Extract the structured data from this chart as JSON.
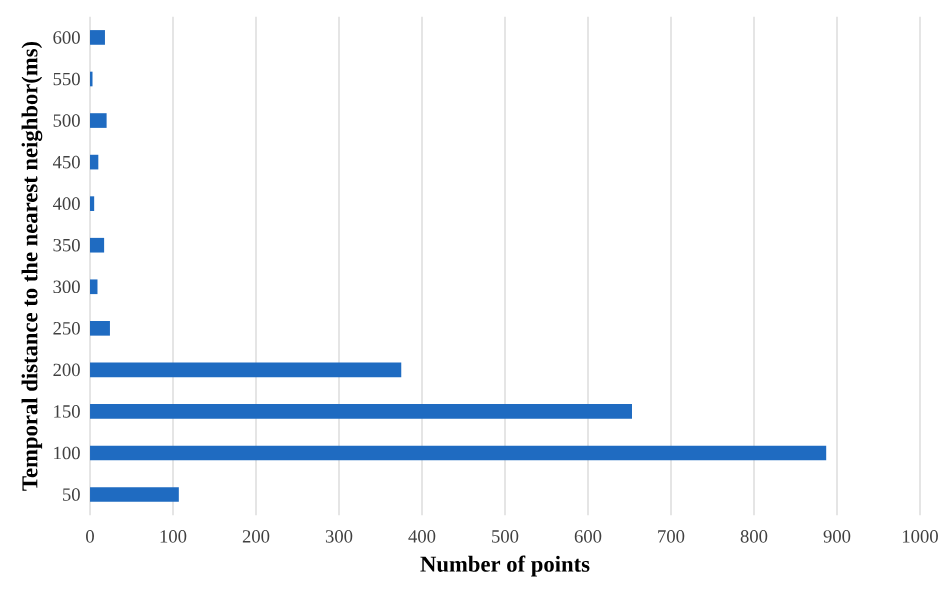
{
  "chart_data": {
    "type": "bar",
    "orientation": "horizontal",
    "xlabel": "Number of points",
    "ylabel": "Temporal distance to the nearest neighbor(ms)",
    "categories": [
      "600",
      "550",
      "500",
      "450",
      "400",
      "350",
      "300",
      "250",
      "200",
      "150",
      "100",
      "50"
    ],
    "values": [
      18,
      3,
      20,
      10,
      5,
      17,
      9,
      24,
      375,
      653,
      887,
      107
    ],
    "color": "#1f6bc1",
    "xlim": [
      0,
      1000
    ],
    "xticks": [
      0,
      100,
      200,
      300,
      400,
      500,
      600,
      700,
      800,
      900,
      1000
    ],
    "grid": "x"
  }
}
